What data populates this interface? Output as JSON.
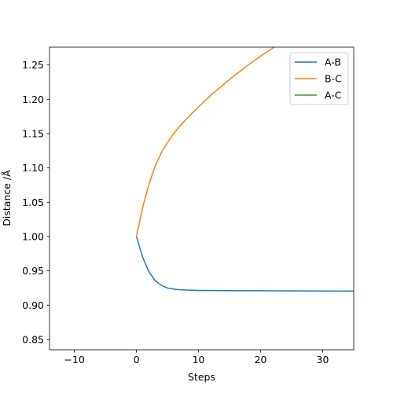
{
  "chart_data": {
    "type": "line",
    "title": "",
    "xlabel": "Steps",
    "ylabel": "Distance /Å",
    "xlim": [
      -14,
      35
    ],
    "ylim": [
      0.835,
      1.276
    ],
    "xticks": [
      -10,
      0,
      10,
      20,
      30
    ],
    "yticks": [
      0.85,
      0.9,
      0.95,
      1.0,
      1.05,
      1.1,
      1.15,
      1.2,
      1.25
    ],
    "xtick_labels": [
      "−10",
      "0",
      "10",
      "20",
      "30"
    ],
    "ytick_labels": [
      "0.85",
      "0.90",
      "0.95",
      "1.00",
      "1.05",
      "1.10",
      "1.15",
      "1.20",
      "1.25"
    ],
    "legend_position": "top-right",
    "grid": false,
    "series": [
      {
        "name": "A-B",
        "color": "#1f77b4",
        "x": [
          0,
          1,
          2,
          3,
          4,
          5,
          6,
          7,
          8,
          10,
          15,
          20,
          25,
          30,
          35
        ],
        "y": [
          1.0,
          0.97,
          0.949,
          0.936,
          0.929,
          0.925,
          0.9235,
          0.9225,
          0.922,
          0.9215,
          0.9212,
          0.921,
          0.9208,
          0.9206,
          0.9205
        ]
      },
      {
        "name": "B-C",
        "color": "#ff7f0e",
        "x": [
          0,
          1,
          2,
          3,
          4,
          5,
          6,
          7,
          8,
          10,
          12,
          15,
          18,
          20,
          22.2
        ],
        "y": [
          1.0,
          1.042,
          1.076,
          1.102,
          1.122,
          1.137,
          1.15,
          1.161,
          1.171,
          1.189,
          1.206,
          1.229,
          1.25,
          1.263,
          1.276
        ]
      },
      {
        "name": "A-C",
        "color": "#2ca02c",
        "x": [],
        "y": []
      }
    ]
  }
}
